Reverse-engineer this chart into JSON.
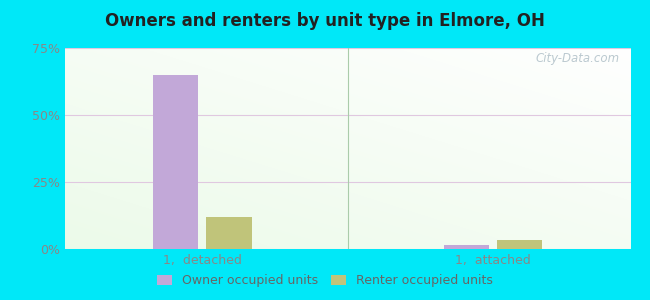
{
  "title": "Owners and renters by unit type in Elmore, OH",
  "categories": [
    "1,  detached",
    "1,  attached"
  ],
  "owner_values": [
    65.0,
    1.5
  ],
  "renter_values": [
    12.0,
    3.5
  ],
  "owner_color": "#c2a8d8",
  "renter_color": "#c0c47a",
  "ylim": [
    0,
    75
  ],
  "yticks": [
    0,
    25,
    50,
    75
  ],
  "yticklabels": [
    "0%",
    "25%",
    "50%",
    "75%"
  ],
  "bar_width": 0.28,
  "watermark": "City-Data.com",
  "legend_owner": "Owner occupied units",
  "legend_renter": "Renter occupied units",
  "outer_bg": "#00e8f8",
  "plot_bg_left": "#c8eec0",
  "plot_bg_right": "#f0f8f0",
  "grid_color": "#e8d8e8",
  "tick_color": "#888888",
  "title_color": "#222222"
}
